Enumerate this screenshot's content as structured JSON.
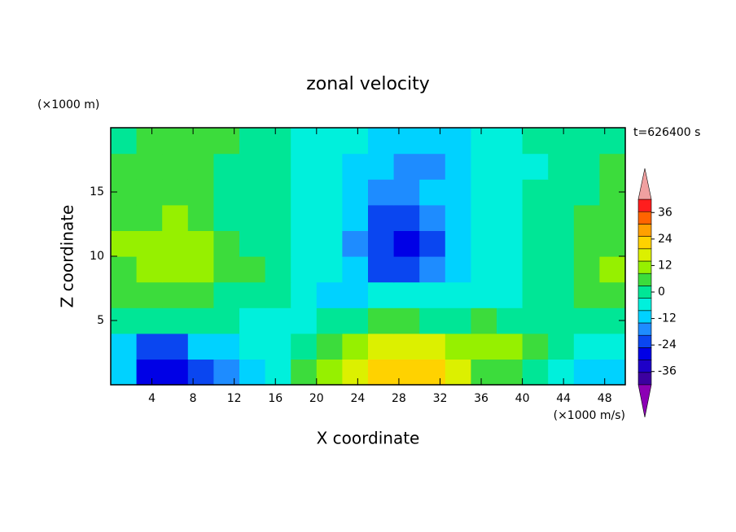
{
  "chart_data": {
    "type": "contour",
    "title": "zonal velocity",
    "x_label": "X coordinate",
    "y_label": "Z coordinate",
    "y_unit": "(×1000 m)",
    "value_unit": "(×1000 m/s)",
    "time_label": "t=626400 s",
    "x": [
      1.25,
      3.75,
      6.25,
      8.75,
      11.25,
      13.75,
      16.25,
      18.75,
      21.25,
      23.75,
      26.25,
      28.75,
      31.25,
      33.75,
      36.25,
      38.75,
      41.25,
      43.75,
      46.25,
      48.75
    ],
    "y": [
      1,
      3,
      5,
      7,
      9,
      11,
      13,
      15,
      17,
      19
    ],
    "values": [
      [
        -14,
        -26,
        -26,
        -22,
        -18,
        -10,
        -4,
        4,
        10,
        16,
        20,
        22,
        22,
        14,
        8,
        4,
        2,
        -4,
        -10,
        -10
      ],
      [
        -10,
        -20,
        -20,
        -14,
        -10,
        -8,
        -6,
        0,
        6,
        10,
        14,
        16,
        14,
        10,
        10,
        12,
        8,
        2,
        -4,
        -8
      ],
      [
        -2,
        0,
        0,
        -2,
        -2,
        -4,
        -6,
        -6,
        -2,
        2,
        4,
        4,
        2,
        0,
        4,
        2,
        0,
        -2,
        0,
        2
      ],
      [
        8,
        8,
        6,
        4,
        2,
        0,
        -2,
        -8,
        -10,
        -10,
        -8,
        -8,
        -6,
        -4,
        -6,
        -4,
        -2,
        0,
        4,
        6
      ],
      [
        8,
        12,
        12,
        10,
        8,
        4,
        0,
        -4,
        -8,
        -12,
        -20,
        -22,
        -18,
        -12,
        -8,
        -4,
        -2,
        2,
        4,
        10
      ],
      [
        10,
        13,
        13,
        10,
        6,
        2,
        0,
        -4,
        -8,
        -16,
        -22,
        -26,
        -20,
        -12,
        -8,
        -4,
        0,
        2,
        6,
        8
      ],
      [
        6,
        8,
        10,
        6,
        2,
        2,
        0,
        -4,
        -8,
        -14,
        -20,
        -22,
        -18,
        -12,
        -8,
        -4,
        0,
        2,
        4,
        6
      ],
      [
        4,
        6,
        6,
        4,
        0,
        0,
        2,
        -4,
        -8,
        -12,
        -16,
        -16,
        -14,
        -12,
        -8,
        -4,
        -2,
        0,
        2,
        4
      ],
      [
        4,
        4,
        4,
        4,
        2,
        -2,
        2,
        -4,
        -8,
        -10,
        -14,
        -18,
        -16,
        -12,
        -8,
        -4,
        -4,
        -2,
        2,
        4
      ],
      [
        2,
        4,
        4,
        4,
        4,
        -2,
        2,
        -4,
        -6,
        -8,
        -12,
        -14,
        -14,
        -10,
        -8,
        -4,
        -2,
        -2,
        2,
        2
      ]
    ],
    "cell_width": 2.5,
    "cell_height": 2,
    "xlim": [
      0,
      50
    ],
    "ylim": [
      0,
      20
    ],
    "xticks": [
      4,
      8,
      12,
      16,
      20,
      24,
      28,
      32,
      36,
      40,
      44,
      48
    ],
    "yticks": [
      5,
      10,
      15
    ],
    "clim": [
      -42,
      42
    ],
    "cticks": [
      -36,
      -24,
      -12,
      0,
      12,
      24,
      36
    ],
    "colors": [
      "#3c00a0",
      "#1e00c8",
      "#0000e6",
      "#0a46f0",
      "#1e8cff",
      "#00d2ff",
      "#00f0dc",
      "#00e696",
      "#3cdc3c",
      "#96f000",
      "#dcf000",
      "#ffd200",
      "#ffa000",
      "#ff6400",
      "#ff1e1e"
    ],
    "extend_colors": {
      "under": "#8c00b4",
      "over": "#f0a0a0"
    }
  }
}
